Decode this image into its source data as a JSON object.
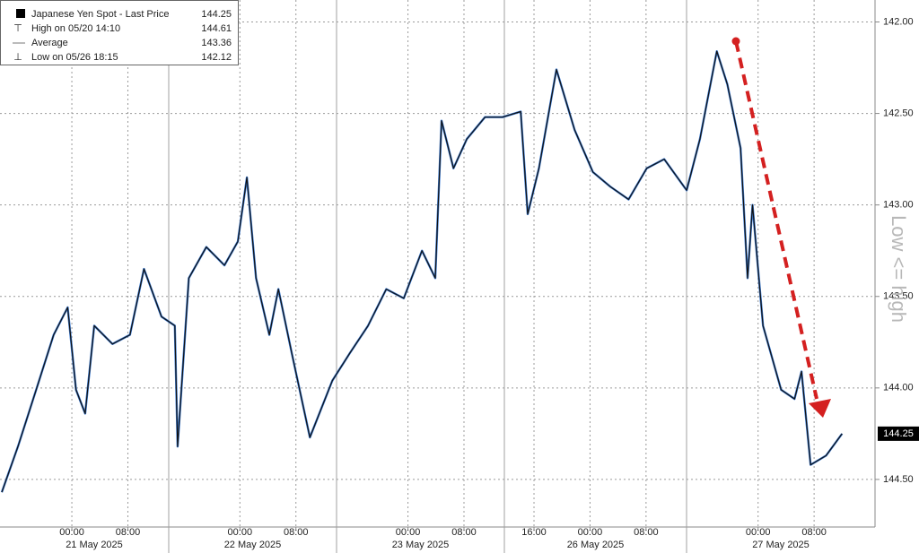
{
  "chart_data": {
    "type": "line",
    "legend": [
      {
        "name": "Japanese Yen Spot - Last Price",
        "value": 144.25
      },
      {
        "name": "High on 05/20 14:10",
        "value": 144.61
      },
      {
        "name": "Average",
        "value": 143.36
      },
      {
        "name": "Low on 05/26 18:15",
        "value": 142.12
      }
    ],
    "annotation": "Low <= high",
    "x": [
      -10,
      -7.7,
      -5.1,
      -2.6,
      -0.6,
      0.6,
      1.9,
      3.2,
      5.8,
      8.3,
      10.3,
      12.8,
      14.7,
      15.1,
      16.7,
      19.2,
      21.8,
      23.7,
      25,
      26.3,
      28.2,
      29.5,
      31.4,
      34,
      37.2,
      39.7,
      42.3,
      44.9,
      47.4,
      50,
      51.9,
      52.8,
      54.5,
      56.4,
      59,
      61.5,
      64.1,
      65.1,
      66.7,
      69.2,
      71.8,
      74.4,
      76.9,
      79.5,
      82.1,
      84.6,
      87.8,
      89.7,
      92.1,
      93.6,
      95.5,
      96.5,
      97.2,
      98.7,
      101.3,
      103.2,
      104.2,
      105.5,
      107.7,
      110
    ],
    "series": [
      {
        "name": "Japanese Yen Spot - Last Price",
        "color": "#111111",
        "values": [
          144.57,
          144.32,
          144.01,
          143.71,
          143.56,
          144.01,
          144.14,
          143.66,
          143.76,
          143.71,
          143.35,
          143.61,
          143.66,
          144.32,
          143.4,
          143.23,
          143.33,
          143.2,
          142.85,
          143.4,
          143.71,
          143.46,
          143.81,
          144.27,
          143.96,
          143.81,
          143.66,
          143.46,
          143.51,
          143.25,
          143.4,
          142.54,
          142.8,
          142.64,
          142.52,
          142.52,
          142.49,
          143.05,
          142.8,
          142.26,
          142.59,
          142.82,
          142.9,
          142.97,
          142.8,
          142.75,
          142.92,
          142.64,
          142.16,
          142.34,
          142.69,
          143.4,
          143.0,
          143.66,
          144.01,
          144.06,
          143.91,
          144.42,
          144.37,
          144.25
        ]
      }
    ],
    "xlim": [
      -10.26,
      114.7
    ],
    "xticks": [
      {
        "value": 0,
        "label": "00:00"
      },
      {
        "value": 8,
        "label": "08:00"
      },
      {
        "value": 24,
        "label": "00:00"
      },
      {
        "value": 32,
        "label": "08:00"
      },
      {
        "value": 48,
        "label": "00:00"
      },
      {
        "value": 56,
        "label": "08:00"
      },
      {
        "value": 66,
        "label": "16:00"
      },
      {
        "value": 74,
        "label": "00:00"
      },
      {
        "value": 82,
        "label": "08:00"
      },
      {
        "value": 98,
        "label": "00:00"
      },
      {
        "value": 106,
        "label": "08:00"
      }
    ],
    "date_labels": [
      "21 May 2025",
      "22 May 2025",
      "23 May 2025",
      "26 May 2025",
      "27 May 2025"
    ],
    "ylim": [
      144.76,
      141.88
    ],
    "yticks": [
      {
        "value": 142,
        "label": "142.00"
      },
      {
        "value": 142.5,
        "label": "142.50"
      },
      {
        "value": 143,
        "label": "143.00"
      },
      {
        "value": 143.5,
        "label": "143.50"
      },
      {
        "value": 144,
        "label": "144.00"
      },
      {
        "value": 144.5,
        "label": "144.50"
      }
    ],
    "grid": true
  }
}
